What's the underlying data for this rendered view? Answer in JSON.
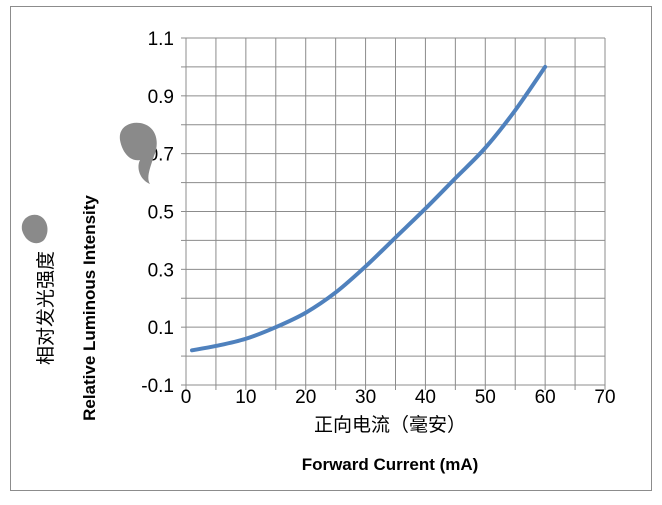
{
  "chart_data": {
    "type": "line",
    "xlabel_cn": "正向电流（毫安）",
    "xlabel_en": "Forward Current (mA)",
    "ylabel_cn": "相对发光强度",
    "ylabel_en": "Relative Luminous Intensity",
    "xlim": [
      0,
      70
    ],
    "ylim": [
      -0.1,
      1.1
    ],
    "x_ticks": [
      "0",
      "10",
      "20",
      "30",
      "40",
      "50",
      "60",
      "70"
    ],
    "y_ticks": [
      "-0.1",
      "0.1",
      "0.3",
      "0.5",
      "0.7",
      "0.9",
      "1.1"
    ],
    "x_minor_step": 5,
    "y_minor_step": 0.1,
    "grid": true,
    "line_color": "#4f81bd",
    "series": [
      {
        "x": [
          1,
          5,
          10,
          15,
          20,
          25,
          30,
          35,
          40,
          45,
          50,
          55,
          60
        ],
        "values": [
          0.02,
          0.035,
          0.06,
          0.1,
          0.15,
          0.22,
          0.31,
          0.41,
          0.51,
          0.615,
          0.72,
          0.85,
          1.0
        ]
      }
    ]
  }
}
